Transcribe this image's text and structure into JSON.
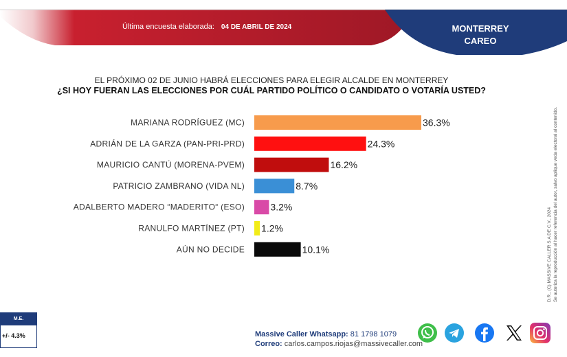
{
  "header": {
    "survey_label": "Última encuesta elaborada:",
    "survey_date": "04 DE ABRIL DE 2024",
    "region_line1": "MONTERREY",
    "region_line2": "CAREO"
  },
  "question": {
    "line1": "EL PRÓXIMO 02 DE JUNIO HABRÁ ELECCIONES PARA ELEGIR ALCALDE EN MONTERREY",
    "line2": "¿SI HOY FUERAN LAS ELECCIONES POR CUÁL PARTIDO POLÍTICO O CANDIDATO O VOTARÍA USTED?"
  },
  "chart_data": {
    "type": "bar",
    "orientation": "horizontal",
    "title": "¿SI HOY FUERAN LAS ELECCIONES POR CUÁL PARTIDO POLÍTICO O CANDIDATO O VOTARÍA USTED?",
    "categories": [
      "MARIANA RODRÍGUEZ (MC)",
      "ADRIÁN DE LA GARZA  (PAN-PRI-PRD)",
      "MAURICIO CANTÚ (MORENA-PVEM)",
      "PATRICIO ZAMBRANO (VIDA NL)",
      "ADALBERTO MADERO “MADERITO“ (ESO)",
      "RANULFO MARTÍNEZ (PT)",
      "AÚN NO DECIDE"
    ],
    "values": [
      36.3,
      24.3,
      16.2,
      8.7,
      3.2,
      1.2,
      10.1
    ],
    "value_labels": [
      "36.3%",
      "24.3%",
      "16.2%",
      "8.7%",
      "3.2%",
      "1.2%",
      "10.1%"
    ],
    "colors": [
      "#f79b4c",
      "#ff1010",
      "#c00d0d",
      "#3a8fd6",
      "#d94aa7",
      "#f2ec18",
      "#0a0a0a"
    ],
    "xlim": [
      0,
      36.3
    ],
    "grid": false,
    "legend": "none"
  },
  "side_note": {
    "line1": "D.R., (C) MASSIVE CALLER S.A DE C.V., 2024",
    "line2": "Se autoriza la reproducción al hacer referencia del autor, salvo aplique veda electoral al contenido."
  },
  "margin_error": {
    "label": "M.E.",
    "value": "+/- 4.3%"
  },
  "contact": {
    "whatsapp_label": "Massive Caller Whatsapp:",
    "whatsapp_value": "81 1798 1079",
    "email_label": "Correo:",
    "email_value": "carlos.campos.riojas@massivecaller.com"
  },
  "social_icons": [
    "whatsapp-icon",
    "telegram-icon",
    "facebook-icon",
    "x-icon",
    "instagram-icon"
  ],
  "theme": {
    "red": "#b01f2e",
    "navy": "#1f3c7a"
  }
}
